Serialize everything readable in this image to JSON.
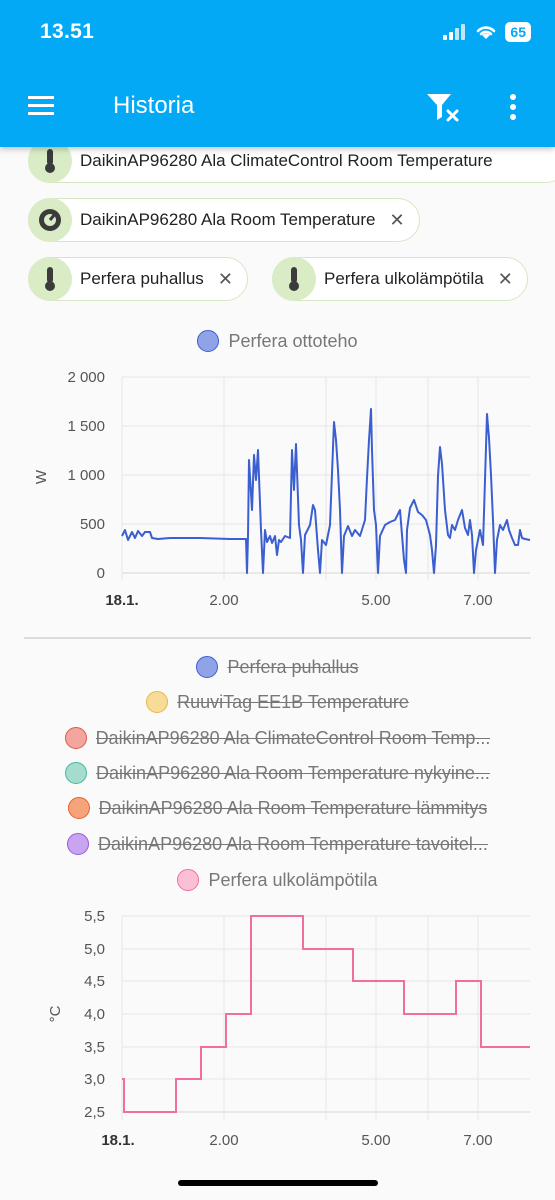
{
  "status": {
    "time": "13.51",
    "battery": "65"
  },
  "appbar": {
    "title": "Historia"
  },
  "chips": [
    {
      "label": "DaikinAP96280 Ala ClimateControl Room Temperature",
      "icon": "thermometer-icon"
    },
    {
      "label": "DaikinAP96280 Ala Room Temperature",
      "icon": "gauge-icon",
      "close": "✕"
    },
    {
      "label": "Perfera puhallus",
      "icon": "thermometer-icon",
      "close": "✕"
    },
    {
      "label": "Perfera ulkolämpötila",
      "icon": "thermometer-icon",
      "close": "✕"
    }
  ],
  "chart1": {
    "legend": "Perfera ottoteho",
    "unit": "W",
    "y_ticks": [
      "2 000",
      "1 500",
      "1 000",
      "500",
      "0"
    ],
    "x_ticks": [
      "18.1.",
      "2.00",
      "5.00",
      "7.00"
    ]
  },
  "legend2": [
    {
      "label": "Perfera puhallus",
      "color": "#3b5fd0",
      "fill": "#8fa3e6",
      "off": true
    },
    {
      "label": "RuuviTag EE1B Temperature",
      "color": "#e6b84a",
      "fill": "#f7dc98",
      "off": true
    },
    {
      "label": "DaikinAP96280 Ala ClimateControl Room Temp...",
      "color": "#e0574e",
      "fill": "#f3a69e",
      "off": true
    },
    {
      "label": "DaikinAP96280 Ala Room Temperature nykyine...",
      "color": "#45b89b",
      "fill": "#a6dccd",
      "off": true
    },
    {
      "label": "DaikinAP96280 Ala Room Temperature lämmitys",
      "color": "#e8642a",
      "fill": "#f5a37b",
      "off": true
    },
    {
      "label": "DaikinAP96280 Ala Room Temperature tavoitel...",
      "color": "#9b59e0",
      "fill": "#c9a4f0",
      "off": true
    },
    {
      "label": "Perfera ulkolämpötila",
      "color": "#f06fa0",
      "fill": "#fbc0d6",
      "off": false
    }
  ],
  "chart2": {
    "unit": "°C",
    "y_ticks": [
      "5,5",
      "5,0",
      "4,5",
      "4,0",
      "3,5",
      "3,0",
      "2,5"
    ],
    "x_ticks": [
      "18.1.",
      "2.00",
      "5.00",
      "7.00"
    ]
  },
  "chart_data": [
    {
      "type": "line",
      "title": "Perfera ottoteho",
      "ylabel": "W",
      "ylim": [
        0,
        2000
      ],
      "x": [
        "23.30",
        "0.00",
        "0.30",
        "1.00",
        "1.30",
        "2.00",
        "2.30",
        "2.40",
        "2.50",
        "3.00",
        "3.20",
        "3.40",
        "4.00",
        "4.20",
        "4.40",
        "5.00",
        "5.20",
        "5.40",
        "6.00",
        "6.20",
        "6.40",
        "7.00",
        "7.20",
        "7.40"
      ],
      "series": [
        {
          "name": "Perfera ottoteho",
          "values": [
            400,
            350,
            350,
            340,
            340,
            340,
            330,
            1250,
            300,
            1300,
            300,
            700,
            1500,
            350,
            1650,
            400,
            700,
            300,
            1300,
            350,
            1600,
            400,
            700,
            320
          ]
        }
      ]
    },
    {
      "type": "line",
      "title": "Perfera ulkolämpötila",
      "ylabel": "°C",
      "ylim": [
        2.5,
        5.5
      ],
      "x": [
        "18.1. 0.00",
        "18.1. 1.05",
        "18.1. 1.40",
        "18.1. 2.00",
        "18.1. 2.30",
        "18.1. 3.20",
        "18.1. 4.10",
        "18.1. 5.00",
        "18.1. 6.00",
        "18.1. 6.40",
        "18.1. 7.00"
      ],
      "series": [
        {
          "name": "Perfera ulkolämpötila",
          "values": [
            2.5,
            3.0,
            3.5,
            4.0,
            5.5,
            5.0,
            4.5,
            4.0,
            4.5,
            3.5,
            3.5
          ]
        }
      ]
    }
  ]
}
